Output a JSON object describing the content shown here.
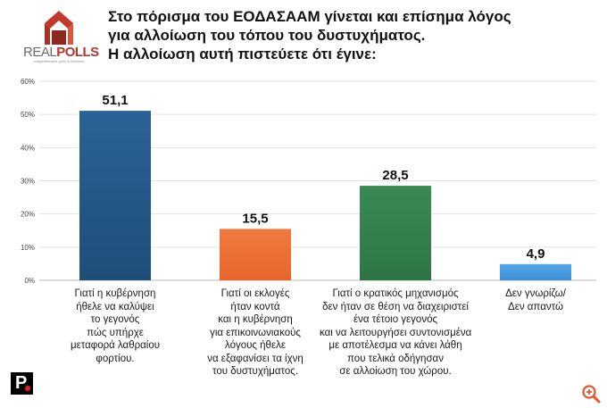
{
  "brand": {
    "logo_real": "REAL",
    "logo_polls": "POLLS",
    "logo_tagline": "comprehensive polls & research"
  },
  "title_lines": [
    "Στο πόρισμα του ΕΟΔΑΣΑΑΜ γίνεται και επίσημα λόγος",
    "για αλλοίωση του τόπου του δυστυχήματος.",
    "Η αλλοίωση αυτή πιστεύετε ότι έγινε:"
  ],
  "publisher": {
    "logo_letter": "P",
    "accent_color": "#e2231a"
  },
  "zoom_icon": {
    "name": "zoom-in-icon",
    "color": "#e8552a"
  },
  "chart_data": {
    "type": "bar",
    "y_tick_labels": [
      "0%",
      "10%",
      "20%",
      "30%",
      "40%",
      "50%",
      "60%"
    ],
    "ylim": [
      0,
      60
    ],
    "y_ticks": [
      0,
      10,
      20,
      30,
      40,
      50,
      60
    ],
    "grid": true,
    "categories": [
      [
        "Γιατί η κυβέρνηση",
        "ήθελε να καλύψει",
        "το γεγονός",
        "πώς υπήρχε",
        "μεταφορά λαθραίου",
        "φορτίου."
      ],
      [
        "Γιατί οι εκλογές",
        "ήταν κοντά",
        "και η κυβέρνηση",
        "για επικοινωνιακούς",
        "λόγους ήθελε",
        "να εξαφανίσει τα ίχνη",
        "του δυστυχήματος."
      ],
      [
        "Γιατί ο κρατικός μηχανισμός",
        "δεν ήταν σε θέση να διαχειριστεί",
        "ένα τέτοιο γεγονός",
        "και να λειτουργήσει συντονισμένα",
        "με αποτέλεσμα να κάνει λάθη",
        "που τελικά οδήγησαν",
        "σε αλλοίωση του χώρου."
      ],
      [
        "Δεν γνωρίζω/",
        "Δεν απαντώ"
      ]
    ],
    "values": [
      51.1,
      15.5,
      28.5,
      4.9
    ],
    "value_labels": [
      "51,1",
      "15,5",
      "28,5",
      "4,9"
    ],
    "colors": [
      "#1f4e79",
      "#e8652a",
      "#2e7545",
      "#3a8fd6"
    ],
    "gradient_tops": [
      "#2b6296",
      "#f07a3e",
      "#3a8a55",
      "#55a6ea"
    ]
  }
}
